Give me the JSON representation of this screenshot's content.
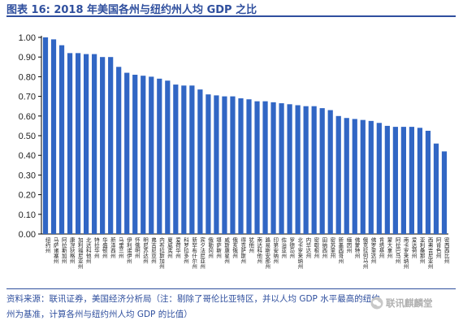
{
  "title": "图表 16: 2018 年美国各州与纽约州人均 GDP 之比",
  "source": "资料来源：联讯证券，美国经济分析局（注：剔除了哥伦比亚特区，并以人均 GDP 水平最高的纽约州为基准，计算各州与纽约州人均 GDP 的比值）",
  "watermark": "联讯麒麟堂",
  "colors": {
    "bar": "#3166C4",
    "title": "#2F4F9E"
  },
  "chart_data": {
    "type": "bar",
    "title": "",
    "xlabel": "",
    "ylabel": "",
    "ylim": [
      0.0,
      1.0
    ],
    "yticks": [
      "0.00",
      "0.10",
      "0.20",
      "0.30",
      "0.40",
      "0.50",
      "0.60",
      "0.70",
      "0.80",
      "0.90",
      "1.00"
    ],
    "grid": false,
    "categories": [
      "纽约州",
      "马萨诸塞州",
      "阿拉斯加州",
      "康涅狄格州",
      "加利福尼亚州",
      "北达科他州",
      "特拉华州",
      "华盛顿州",
      "新泽西州",
      "马里兰州",
      "伊利诺伊州",
      "怀俄明州",
      "明尼苏达州",
      "弗吉尼亚州",
      "内布拉斯加州",
      "夏威夷州",
      "爱荷华州",
      "科罗拉多州",
      "新罕布什尔州",
      "宾夕法尼亚州",
      "俄勒冈州",
      "堪萨斯州",
      "威斯康星州",
      "俄亥俄州",
      "得克萨斯州",
      "犹他州",
      "南达科他州",
      "路易斯安那州",
      "印第安纳州",
      "佐治亚州",
      "罗德岛州",
      "北卡罗来纳州",
      "内华达州",
      "密歇根州",
      "田纳西州",
      "密苏里州",
      "新墨西哥州",
      "缅因州",
      "佛蒙特州",
      "俄克拉何马州",
      "佛罗里达州",
      "肯塔基州",
      "蒙大拿州",
      "阿拉巴马州",
      "南卡罗来纳州",
      "爱达荷州",
      "亚利桑那州",
      "西弗吉尼亚州",
      "阿肯色州",
      "密西西比州"
    ],
    "values": [
      1.0,
      0.99,
      0.96,
      0.92,
      0.92,
      0.915,
      0.915,
      0.9,
      0.9,
      0.85,
      0.82,
      0.81,
      0.805,
      0.8,
      0.79,
      0.78,
      0.76,
      0.755,
      0.755,
      0.735,
      0.71,
      0.705,
      0.7,
      0.7,
      0.69,
      0.685,
      0.675,
      0.675,
      0.67,
      0.665,
      0.66,
      0.655,
      0.65,
      0.65,
      0.64,
      0.63,
      0.6,
      0.59,
      0.585,
      0.58,
      0.575,
      0.565,
      0.55,
      0.545,
      0.545,
      0.545,
      0.54,
      0.525,
      0.46,
      0.42
    ]
  }
}
